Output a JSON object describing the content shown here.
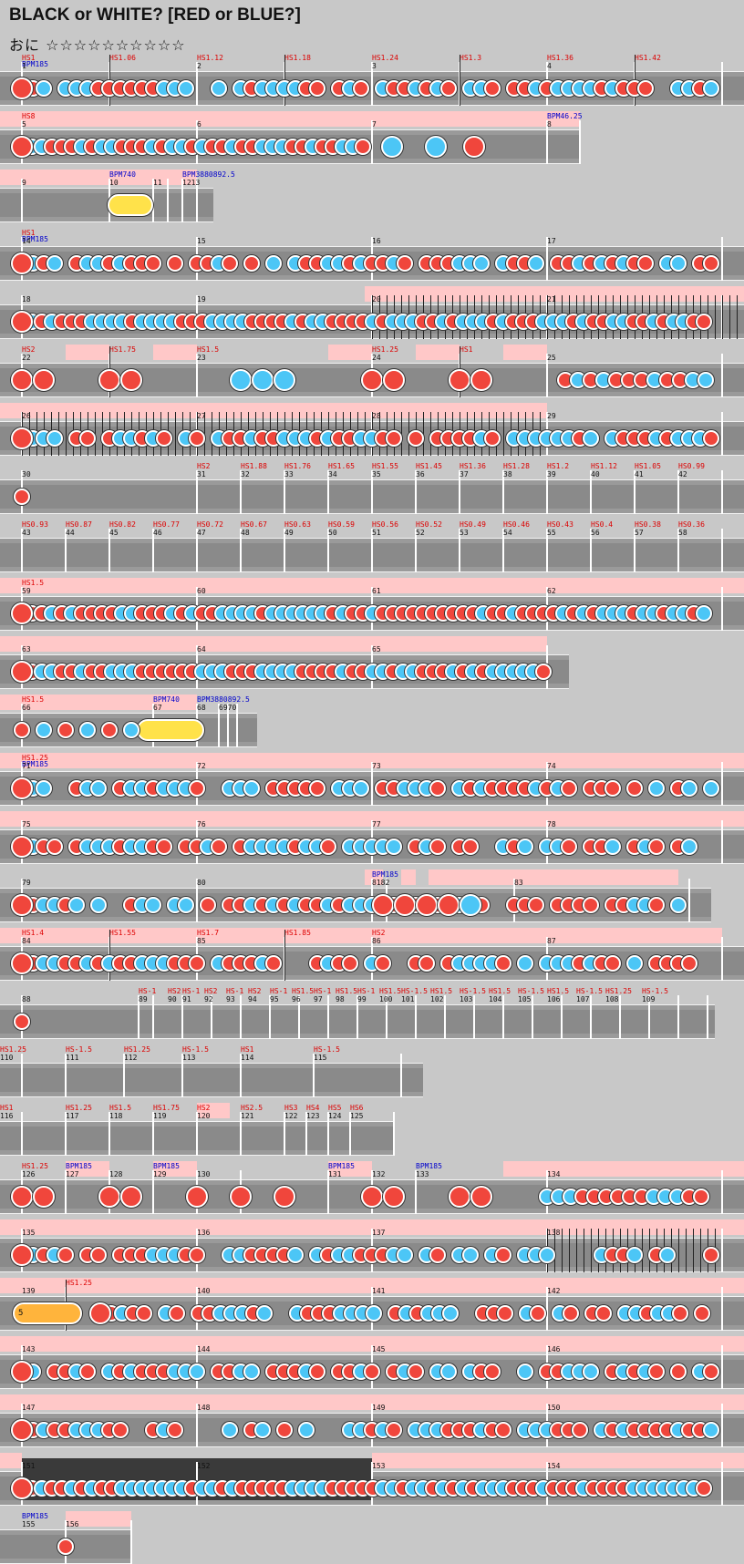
{
  "song": {
    "title": "BLACK or WHITE? [RED or BLUE?]",
    "course": "おに",
    "stars": "☆☆☆☆☆☆☆☆☆☆"
  },
  "colors": {
    "don": "#f0463c",
    "ka": "#4cc6f6",
    "roll": "#ffe24a",
    "balloon": "#ffb43c",
    "lane": "#9a9a9a",
    "gogo_band": "#ffc8c8",
    "scroll_label": "#dd0000",
    "bpm_label": "#0000cc"
  },
  "rows": [
    {
      "id": "r1",
      "measures": [
        {
          "n": "1",
          "hs": "HS1",
          "bpm": "BPM185"
        },
        {
          "n": "",
          "hs": "HS1.06"
        },
        {
          "n": "2",
          "hs": "HS1.12"
        },
        {
          "n": "",
          "hs": "HS1.18"
        },
        {
          "n": "3",
          "hs": "HS1.24"
        },
        {
          "n": "",
          "hs": "HS1.3"
        },
        {
          "n": "4",
          "hs": "HS1.36"
        },
        {
          "n": "",
          "hs": "HS1.42"
        }
      ]
    },
    {
      "id": "r2",
      "measures": [
        {
          "n": "5",
          "hs": "HS8"
        },
        {
          "n": "6"
        },
        {
          "n": "7"
        },
        {
          "n": "8",
          "bpm": "BPM46.25"
        }
      ]
    },
    {
      "id": "r3",
      "measures": [
        {
          "n": "9"
        },
        {
          "n": "10",
          "bpm": "BPM740"
        },
        {
          "n": "11"
        },
        {
          "n": "1213",
          "bpm": "BPM3880892.5"
        }
      ]
    },
    {
      "id": "r4",
      "measures": [
        {
          "n": "14",
          "hs": "HS1",
          "bpm": "BPM185"
        },
        {
          "n": "15"
        },
        {
          "n": "16"
        },
        {
          "n": "17"
        }
      ]
    },
    {
      "id": "r5",
      "measures": [
        {
          "n": "18"
        },
        {
          "n": "19"
        },
        {
          "n": "20"
        },
        {
          "n": "21"
        }
      ]
    },
    {
      "id": "r6",
      "measures": [
        {
          "n": "22",
          "hs": "HS2"
        },
        {
          "n": "",
          "hs": "HS1.75"
        },
        {
          "n": "23",
          "hs": "HS1.5"
        },
        {
          "n": "24",
          "hs": "HS1.25"
        },
        {
          "n": "",
          "hs": "HS1"
        },
        {
          "n": "25"
        }
      ]
    },
    {
      "id": "r7",
      "measures": [
        {
          "n": "26"
        },
        {
          "n": "27"
        },
        {
          "n": "28"
        },
        {
          "n": "29"
        }
      ]
    },
    {
      "id": "r8",
      "measures": [
        {
          "n": "30"
        },
        {
          "n": "31",
          "hs": "HS2"
        },
        {
          "n": "32",
          "hs": "HS1.88"
        },
        {
          "n": "33",
          "hs": "HS1.76"
        },
        {
          "n": "34",
          "hs": "HS1.65"
        },
        {
          "n": "35",
          "hs": "HS1.55"
        },
        {
          "n": "36",
          "hs": "HS1.45"
        },
        {
          "n": "37",
          "hs": "HS1.36"
        },
        {
          "n": "38",
          "hs": "HS1.28"
        },
        {
          "n": "39",
          "hs": "HS1.2"
        },
        {
          "n": "40",
          "hs": "HS1.12"
        },
        {
          "n": "41",
          "hs": "HS1.05"
        },
        {
          "n": "42",
          "hs": "HS0.99"
        }
      ]
    },
    {
      "id": "r9",
      "measures": [
        {
          "n": "43",
          "hs": "HS0.93"
        },
        {
          "n": "44",
          "hs": "HS0.87"
        },
        {
          "n": "45",
          "hs": "HS0.82"
        },
        {
          "n": "46",
          "hs": "HS0.77"
        },
        {
          "n": "47",
          "hs": "HS0.72"
        },
        {
          "n": "48",
          "hs": "HS0.67"
        },
        {
          "n": "49",
          "hs": "HS0.63"
        },
        {
          "n": "50",
          "hs": "HS0.59"
        },
        {
          "n": "51",
          "hs": "HS0.56"
        },
        {
          "n": "52",
          "hs": "HS0.52"
        },
        {
          "n": "53",
          "hs": "HS0.49"
        },
        {
          "n": "54",
          "hs": "HS0.46"
        },
        {
          "n": "55",
          "hs": "HS0.43"
        },
        {
          "n": "56",
          "hs": "HS0.4"
        },
        {
          "n": "57",
          "hs": "HS0.38"
        },
        {
          "n": "58",
          "hs": "HS0.36"
        }
      ]
    },
    {
      "id": "r10",
      "measures": [
        {
          "n": "59",
          "hs": "HS1.5"
        },
        {
          "n": "60"
        },
        {
          "n": "61"
        },
        {
          "n": "62"
        }
      ]
    },
    {
      "id": "r11",
      "measures": [
        {
          "n": "63"
        },
        {
          "n": "64"
        },
        {
          "n": "65"
        }
      ]
    },
    {
      "id": "r12",
      "measures": [
        {
          "n": "66",
          "hs": "HS1.5"
        },
        {
          "n": "67",
          "bpm": "BPM740"
        },
        {
          "n": "68",
          "bpm": "BPM3880892.5"
        },
        {
          "n": "6970"
        }
      ]
    },
    {
      "id": "r13",
      "measures": [
        {
          "n": "71",
          "hs": "HS1.25",
          "bpm": "BPM185"
        },
        {
          "n": "72"
        },
        {
          "n": "73"
        },
        {
          "n": "74"
        }
      ]
    },
    {
      "id": "r14",
      "measures": [
        {
          "n": "75"
        },
        {
          "n": "76"
        },
        {
          "n": "77"
        },
        {
          "n": "78"
        }
      ]
    },
    {
      "id": "r15",
      "measures": [
        {
          "n": "79"
        },
        {
          "n": "80"
        },
        {
          "n": "8182",
          "bpm": "BPM185"
        },
        {
          "n": "83"
        }
      ]
    },
    {
      "id": "r16",
      "measures": [
        {
          "n": "84",
          "hs": "HS1.4"
        },
        {
          "n": "",
          "hs": "HS1.55"
        },
        {
          "n": "85",
          "hs": "HS1.7"
        },
        {
          "n": "",
          "hs": "HS1.85"
        },
        {
          "n": "86",
          "hs": "HS2"
        },
        {
          "n": "87"
        }
      ]
    },
    {
      "id": "r17",
      "measures": [
        {
          "n": "88"
        },
        {
          "n": "89",
          "hs": "HS-1"
        },
        {
          "n": "90",
          "hs": "HS2"
        },
        {
          "n": "91",
          "hs": "HS-1"
        },
        {
          "n": "92",
          "hs": "HS2"
        },
        {
          "n": "93",
          "hs": "HS-1"
        },
        {
          "n": "94",
          "hs": "HS2"
        },
        {
          "n": "95",
          "hs": "HS-1"
        },
        {
          "n": "96",
          "hs": "HS1.5"
        },
        {
          "n": "97",
          "hs": "HS-1"
        },
        {
          "n": "98",
          "hs": "HS1.5"
        },
        {
          "n": "99",
          "hs": "HS-1"
        },
        {
          "n": "100",
          "hs": "HS1.5"
        },
        {
          "n": "101",
          "hs": "HS-1.5"
        },
        {
          "n": "102",
          "hs": "HS1.5"
        },
        {
          "n": "103",
          "hs": "HS-1.5"
        },
        {
          "n": "104",
          "hs": "HS1.5"
        },
        {
          "n": "105",
          "hs": "HS-1.5"
        },
        {
          "n": "106",
          "hs": "HS1.5"
        },
        {
          "n": "107",
          "hs": "HS-1.5"
        },
        {
          "n": "108",
          "hs": "HS1.25"
        },
        {
          "n": "109",
          "hs": "HS-1.5"
        }
      ]
    },
    {
      "id": "r18",
      "measures": [
        {
          "n": "110",
          "hs": "HS1.25"
        },
        {
          "n": "111",
          "hs": "HS-1.5"
        },
        {
          "n": "112",
          "hs": "HS1.25"
        },
        {
          "n": "113",
          "hs": "HS-1.5"
        },
        {
          "n": "114",
          "hs": "HS1"
        },
        {
          "n": "115",
          "hs": "HS-1.5"
        }
      ]
    },
    {
      "id": "r19",
      "measures": [
        {
          "n": "116",
          "hs": "HS1"
        },
        {
          "n": "117",
          "hs": "HS1.25"
        },
        {
          "n": "118",
          "hs": "HS1.5"
        },
        {
          "n": "119",
          "hs": "HS1.75"
        },
        {
          "n": "120",
          "hs": "HS2"
        },
        {
          "n": "121",
          "hs": "HS2.5"
        },
        {
          "n": "122",
          "hs": "HS3"
        },
        {
          "n": "123",
          "hs": "HS4"
        },
        {
          "n": "124",
          "hs": "HS5"
        },
        {
          "n": "125",
          "hs": "HS6"
        }
      ]
    },
    {
      "id": "r20",
      "measures": [
        {
          "n": "126",
          "hs": "HS1.25"
        },
        {
          "n": "127",
          "bpm": "BPM185"
        },
        {
          "n": "128"
        },
        {
          "n": "129",
          "bpm": "BPM185"
        },
        {
          "n": "130"
        },
        {
          "n": "131",
          "bpm": "BPM185"
        },
        {
          "n": "132"
        },
        {
          "n": "133",
          "bpm": "BPM185"
        },
        {
          "n": "134"
        }
      ]
    },
    {
      "id": "r21",
      "measures": [
        {
          "n": "135"
        },
        {
          "n": "136"
        },
        {
          "n": "137"
        },
        {
          "n": "138"
        }
      ]
    },
    {
      "id": "r22",
      "measures": [
        {
          "n": "139"
        },
        {
          "n": "",
          "hs": "HS1.25"
        },
        {
          "n": "140"
        },
        {
          "n": "141"
        },
        {
          "n": "142"
        }
      ],
      "balloon_count": "5"
    },
    {
      "id": "r23",
      "measures": [
        {
          "n": "143"
        },
        {
          "n": "144"
        },
        {
          "n": "145"
        },
        {
          "n": "146"
        }
      ]
    },
    {
      "id": "r24",
      "measures": [
        {
          "n": "147"
        },
        {
          "n": "148"
        },
        {
          "n": "149"
        },
        {
          "n": "150"
        }
      ]
    },
    {
      "id": "r25",
      "measures": [
        {
          "n": "151"
        },
        {
          "n": "152"
        },
        {
          "n": "153"
        },
        {
          "n": "154"
        }
      ]
    },
    {
      "id": "r26",
      "measures": [
        {
          "n": "155",
          "bpm": "BPM185"
        },
        {
          "n": "156"
        }
      ]
    }
  ]
}
